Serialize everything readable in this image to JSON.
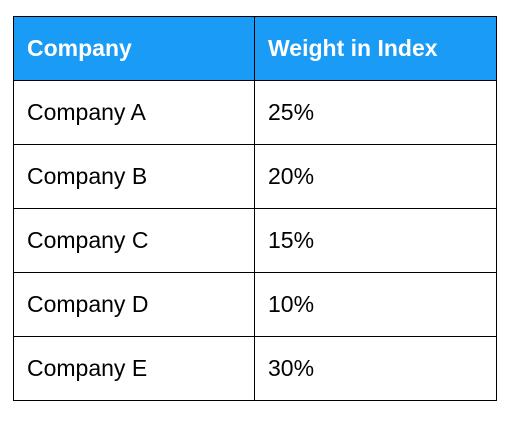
{
  "table": {
    "header_color": "#1a9bf5",
    "columns": [
      "Company",
      "Weight in Index"
    ],
    "rows": [
      [
        "Company A",
        "25%"
      ],
      [
        "Company B",
        "20%"
      ],
      [
        "Company C",
        "15%"
      ],
      [
        "Company D",
        "10%"
      ],
      [
        "Company E",
        "30%"
      ]
    ]
  }
}
